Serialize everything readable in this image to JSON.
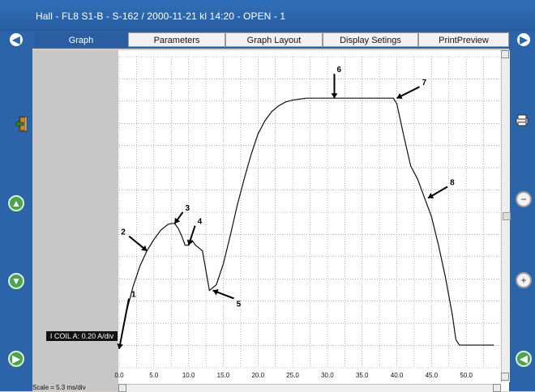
{
  "window": {
    "title": "Hall - FL8 S1-B - S-162 / 2000-11-21 kl 14:20 - OPEN - 1"
  },
  "tabs": [
    {
      "label": "Graph",
      "active": true
    },
    {
      "label": "Parameters",
      "active": false
    },
    {
      "label": "Graph Layout",
      "active": false
    },
    {
      "label": "Display Setings",
      "active": false
    },
    {
      "label": "PrintPreview",
      "active": false
    }
  ],
  "left_panel": {
    "y_channel_caption": "I COIL A: 0.20 A/div",
    "scale_text": "Scale = 5.3 ms/div"
  },
  "icons": {
    "nav_left": "arrow-left-circle-icon",
    "nav_right": "arrow-right-circle-icon",
    "exit": "exit-door-icon",
    "printer": "printer-icon",
    "zoom_out": "zoom-out-icon",
    "zoom_in": "zoom-in-icon",
    "green_up": "green-up-icon",
    "green_down": "green-down-icon"
  },
  "colors": {
    "brand_blue": "#2c64aa",
    "active_tab": "#2a5ea1",
    "plot_background": "#ffffff",
    "green": "#4aa34f"
  },
  "chart_data": {
    "type": "line",
    "x_ticks": [
      "0.0",
      "5.0",
      "10.0",
      "15.0",
      "20.0",
      "25.0",
      "30.0",
      "35.0",
      "40.0",
      "45.0",
      "50.0"
    ],
    "xlim": [
      0,
      55
    ],
    "ylim": [
      -0.1,
      1.55
    ],
    "grid": true,
    "series": [
      {
        "x": [
          0,
          1,
          2,
          3,
          4,
          5,
          6,
          7,
          7.5,
          8,
          8.5,
          9,
          9.5,
          10,
          10.5,
          11,
          12,
          13,
          14,
          15,
          16,
          17,
          18,
          19,
          20,
          21,
          22,
          23,
          24,
          25,
          26,
          27,
          28,
          30,
          32,
          35,
          38,
          39.5,
          40,
          41,
          42,
          43,
          44,
          45,
          46,
          47,
          48,
          48.5,
          49,
          50,
          52,
          54
        ],
        "y": [
          0,
          0.19,
          0.33,
          0.44,
          0.52,
          0.58,
          0.63,
          0.66,
          0.665,
          0.665,
          0.64,
          0.6,
          0.55,
          0.55,
          0.575,
          0.55,
          0.52,
          0.31,
          0.34,
          0.45,
          0.6,
          0.76,
          0.9,
          1.03,
          1.14,
          1.21,
          1.26,
          1.29,
          1.31,
          1.32,
          1.325,
          1.33,
          1.33,
          1.33,
          1.33,
          1.33,
          1.33,
          1.33,
          1.3,
          1.13,
          0.97,
          0.9,
          0.8,
          0.7,
          0.55,
          0.38,
          0.18,
          0.05,
          0.02,
          0.02,
          0.02,
          0.02
        ]
      }
    ],
    "annotations": [
      {
        "label": "1",
        "x": 0,
        "y": 0.0
      },
      {
        "label": "2",
        "x": 4,
        "y": 0.52
      },
      {
        "label": "3",
        "x": 8,
        "y": 0.665
      },
      {
        "label": "4",
        "x": 10,
        "y": 0.55
      },
      {
        "label": "5",
        "x": 13.5,
        "y": 0.31
      },
      {
        "label": "6",
        "x": 31,
        "y": 1.33
      },
      {
        "label": "7",
        "x": 40,
        "y": 1.33
      },
      {
        "label": "8",
        "x": 44.5,
        "y": 0.8
      }
    ]
  }
}
